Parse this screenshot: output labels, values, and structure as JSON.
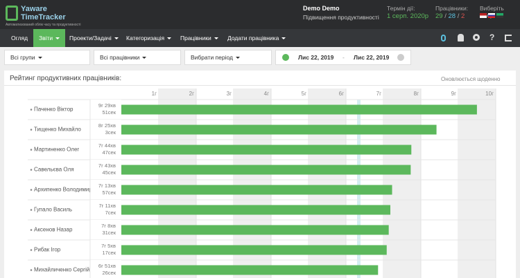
{
  "header": {
    "logo_line1": "Yaware",
    "logo_line2": "TimeTracker",
    "logo_tagline": "Автоматизований облік часу та продуктивності",
    "user_name": "Demo Demo",
    "user_company": "Підвищення продуктивності",
    "term_label": "Термін дії:",
    "term_value": "1 серп. 2020р",
    "employees_label": "Працівники:",
    "employees_counts": [
      29,
      28,
      2
    ],
    "employees_separator": "/",
    "language_label": "Виберіть мову:"
  },
  "nav": {
    "items": [
      "Огляд",
      "Звіти",
      "Проекти/Задачі",
      "Категоризація",
      "Працівники",
      "Додати працівника"
    ]
  },
  "filters": {
    "group": "Всі групи",
    "employees": "Всі працівники",
    "period": "Вибрати період",
    "date_from": "Лис 22, 2019",
    "date_separator": "-",
    "date_to": "Лис 22, 2019"
  },
  "chart_data": {
    "type": "bar",
    "orientation": "horizontal",
    "title": "Рейтинг продуктивних працівників:",
    "subtitle": "Оновлюється щоденно",
    "categories": [
      "Паченко Віктор",
      "Тищенко Михайло",
      "Мартиненко Олег",
      "Савельєва Оля",
      "Архипенко Володимир",
      "Гупало Василь",
      "Аксенов Назар",
      "Рибак Ігор",
      "Михайличенко Сергій"
    ],
    "values": [
      9.498,
      8.418,
      7.746,
      7.729,
      7.232,
      7.185,
      7.142,
      7.088,
      6.857
    ],
    "value_labels": [
      "9г 29хв 51сек",
      "8г 25хв 3сек",
      "7г 44хв 47сек",
      "7г 43хв 45сек",
      "7г 13хв 57сек",
      "7г 11хв 7сек",
      "7г 8хв 31сек",
      "7г 5хв 17сек",
      "6г 51хв 26сек"
    ],
    "color": "#5cb85c",
    "xlim": [
      0,
      10
    ],
    "xticks": [
      {
        "value": 1,
        "label": "1г"
      },
      {
        "value": 2,
        "label": "2г"
      },
      {
        "value": 3,
        "label": "3г"
      },
      {
        "value": 4,
        "label": "4г"
      },
      {
        "value": 5,
        "label": "5г"
      },
      {
        "value": 6,
        "label": "6г"
      },
      {
        "value": 7,
        "label": "7г"
      },
      {
        "value": 8,
        "label": "8г"
      },
      {
        "value": 9,
        "label": "9г"
      },
      {
        "value": 10,
        "label": "10г"
      }
    ],
    "grid": true
  }
}
